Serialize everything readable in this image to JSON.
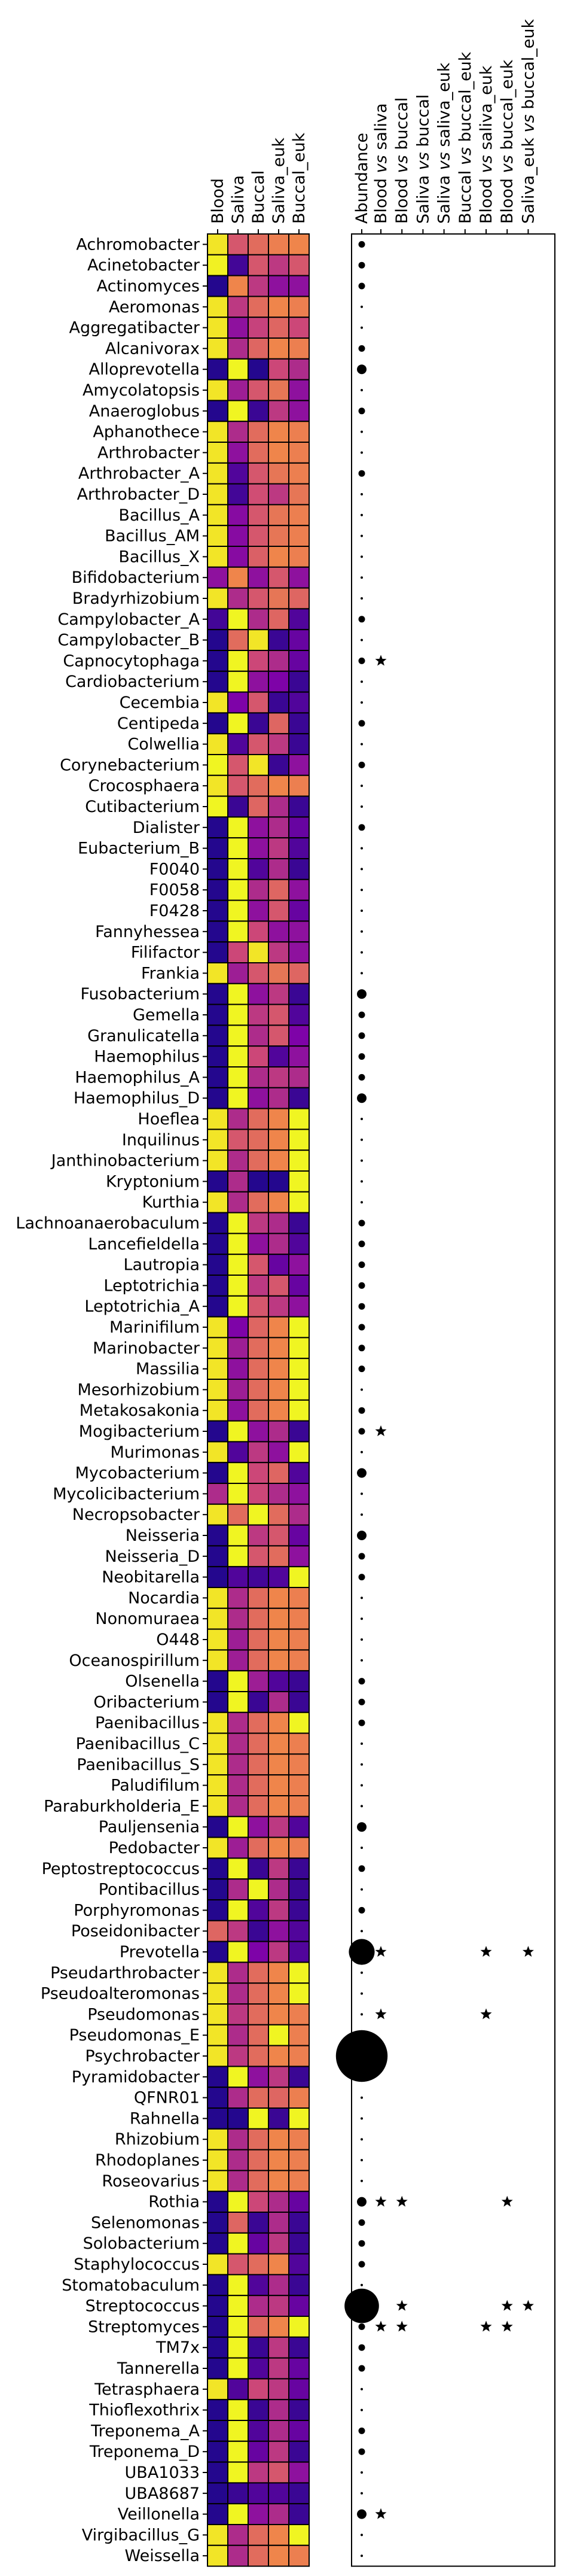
{
  "chart_data": {
    "type": "heatmap",
    "title": "",
    "xlabel": "",
    "ylabel": "",
    "heatmap_columns": [
      "Blood",
      "Saliva",
      "Buccal",
      "Saliva_euk",
      "Buccal_euk"
    ],
    "abundance_column": "Abundance",
    "comparison_columns": [
      {
        "a": "Blood",
        "vs": "vs",
        "b": "saliva"
      },
      {
        "a": "Blood",
        "vs": "vs",
        "b": "buccal"
      },
      {
        "a": "Saliva",
        "vs": "vs",
        "b": "buccal"
      },
      {
        "a": "Saliva",
        "vs": "vs",
        "b": "saliva_euk"
      },
      {
        "a": "Buccal",
        "vs": "vs",
        "b": "buccal_euk"
      },
      {
        "a": "Blood",
        "vs": "vs",
        "b": "saliva_euk"
      },
      {
        "a": "Blood",
        "vs": "vs",
        "b": "buccal_euk"
      },
      {
        "a": "Saliva_euk",
        "vs": "vs",
        "b": "buccal_euk"
      }
    ],
    "colormap": "plasma",
    "value_range": [
      0,
      1
    ],
    "genera": [
      "Achromobacter",
      "Acinetobacter",
      "Actinomyces",
      "Aeromonas",
      "Aggregatibacter",
      "Alcanivorax",
      "Alloprevotella",
      "Amycolatopsis",
      "Anaeroglobus",
      "Aphanothece",
      "Arthrobacter",
      "Arthrobacter_A",
      "Arthrobacter_D",
      "Bacillus_A",
      "Bacillus_AM",
      "Bacillus_X",
      "Bifidobacterium",
      "Bradyrhizobium",
      "Campylobacter_A",
      "Campylobacter_B",
      "Capnocytophaga",
      "Cardiobacterium",
      "Cecembia",
      "Centipeda",
      "Colwellia",
      "Corynebacterium",
      "Crocosphaera",
      "Cutibacterium",
      "Dialister",
      "Eubacterium_B",
      "F0040",
      "F0058",
      "F0428",
      "Fannyhessea",
      "Filifactor",
      "Frankia",
      "Fusobacterium",
      "Gemella",
      "Granulicatella",
      "Haemophilus",
      "Haemophilus_A",
      "Haemophilus_D",
      "Hoeflea",
      "Inquilinus",
      "Janthinobacterium",
      "Kryptonium",
      "Kurthia",
      "Lachnoanaerobaculum",
      "Lancefieldella",
      "Lautropia",
      "Leptotrichia",
      "Leptotrichia_A",
      "Marinifilum",
      "Marinobacter",
      "Massilia",
      "Mesorhizobium",
      "Metakosakonia",
      "Mogibacterium",
      "Murimonas",
      "Mycobacterium",
      "Mycolicibacterium",
      "Necropsobacter",
      "Neisseria",
      "Neisseria_D",
      "Neobitarella",
      "Nocardia",
      "Nonomuraea",
      "O448",
      "Oceanospirillum",
      "Olsenella",
      "Oribacterium",
      "Paenibacillus",
      "Paenibacillus_C",
      "Paenibacillus_S",
      "Paludifilum",
      "Paraburkholderia_E",
      "Pauljensenia",
      "Pedobacter",
      "Peptostreptococcus",
      "Pontibacillus",
      "Porphyromonas",
      "Poseidonibacter",
      "Prevotella",
      "Pseudarthrobacter",
      "Pseudoalteromonas",
      "Pseudomonas",
      "Pseudomonas_E",
      "Psychrobacter",
      "Pyramidobacter",
      "QFNR01",
      "Rahnella",
      "Rhizobium",
      "Rhodoplanes",
      "Roseovarius",
      "Rothia",
      "Selenomonas",
      "Solobacterium",
      "Staphylococcus",
      "Stomatobaculum",
      "Streptococcus",
      "Streptomyces",
      "TM7x",
      "Tannerella",
      "Tetrasphaera",
      "Thioflexothrix",
      "Treponema_A",
      "Treponema_D",
      "UBA1033",
      "UBA8687",
      "Veillonella",
      "Virgibacillus_G",
      "Weissella"
    ],
    "values": [
      [
        0.95,
        0.55,
        0.62,
        0.68,
        0.7
      ],
      [
        0.98,
        0.12,
        0.55,
        0.45,
        0.55
      ],
      [
        0.05,
        0.7,
        0.45,
        0.3,
        0.3
      ],
      [
        0.95,
        0.45,
        0.62,
        0.7,
        0.68
      ],
      [
        0.95,
        0.3,
        0.48,
        0.6,
        0.5
      ],
      [
        0.95,
        0.4,
        0.6,
        0.7,
        0.68
      ],
      [
        0.05,
        0.99,
        0.05,
        0.5,
        0.4
      ],
      [
        0.95,
        0.35,
        0.55,
        0.65,
        0.3
      ],
      [
        0.05,
        0.99,
        0.1,
        0.45,
        0.3
      ],
      [
        0.95,
        0.4,
        0.62,
        0.7,
        0.68
      ],
      [
        0.95,
        0.3,
        0.62,
        0.7,
        0.68
      ],
      [
        0.95,
        0.15,
        0.55,
        0.65,
        0.68
      ],
      [
        0.95,
        0.12,
        0.52,
        0.45,
        0.65
      ],
      [
        0.95,
        0.28,
        0.55,
        0.65,
        0.68
      ],
      [
        0.95,
        0.28,
        0.55,
        0.65,
        0.68
      ],
      [
        0.95,
        0.28,
        0.58,
        0.7,
        0.68
      ],
      [
        0.3,
        0.7,
        0.3,
        0.55,
        0.3
      ],
      [
        0.95,
        0.4,
        0.55,
        0.65,
        0.6
      ],
      [
        0.12,
        0.99,
        0.4,
        0.6,
        0.15
      ],
      [
        0.05,
        0.62,
        0.95,
        0.1,
        0.2
      ],
      [
        0.05,
        0.99,
        0.5,
        0.4,
        0.2
      ],
      [
        0.05,
        0.99,
        0.3,
        0.25,
        0.1
      ],
      [
        0.95,
        0.25,
        0.55,
        0.1,
        0.15
      ],
      [
        0.05,
        0.99,
        0.1,
        0.6,
        0.1
      ],
      [
        0.95,
        0.15,
        0.55,
        0.45,
        0.1
      ],
      [
        0.99,
        0.55,
        0.95,
        0.1,
        0.3
      ],
      [
        0.95,
        0.55,
        0.62,
        0.7,
        0.68
      ],
      [
        0.99,
        0.1,
        0.6,
        0.4,
        0.1
      ],
      [
        0.05,
        0.99,
        0.3,
        0.4,
        0.2
      ],
      [
        0.05,
        0.99,
        0.3,
        0.45,
        0.15
      ],
      [
        0.05,
        0.99,
        0.15,
        0.4,
        0.1
      ],
      [
        0.05,
        0.99,
        0.4,
        0.6,
        0.3
      ],
      [
        0.05,
        0.99,
        0.3,
        0.55,
        0.2
      ],
      [
        0.05,
        0.99,
        0.5,
        0.3,
        0.3
      ],
      [
        0.05,
        0.5,
        0.95,
        0.45,
        0.3
      ],
      [
        0.95,
        0.35,
        0.55,
        0.65,
        0.6
      ],
      [
        0.05,
        0.99,
        0.3,
        0.45,
        0.1
      ],
      [
        0.05,
        0.99,
        0.45,
        0.55,
        0.15
      ],
      [
        0.05,
        0.99,
        0.4,
        0.55,
        0.25
      ],
      [
        0.05,
        0.99,
        0.5,
        0.15,
        0.3
      ],
      [
        0.05,
        0.99,
        0.4,
        0.45,
        0.4
      ],
      [
        0.05,
        0.99,
        0.3,
        0.4,
        0.1
      ],
      [
        0.95,
        0.4,
        0.62,
        0.7,
        0.99
      ],
      [
        0.95,
        0.55,
        0.62,
        0.7,
        0.99
      ],
      [
        0.95,
        0.4,
        0.62,
        0.7,
        0.99
      ],
      [
        0.05,
        0.4,
        0.05,
        0.05,
        0.99
      ],
      [
        0.95,
        0.4,
        0.62,
        0.7,
        0.99
      ],
      [
        0.05,
        0.99,
        0.45,
        0.4,
        0.1
      ],
      [
        0.05,
        0.99,
        0.3,
        0.4,
        0.15
      ],
      [
        0.05,
        0.99,
        0.55,
        0.2,
        0.3
      ],
      [
        0.05,
        0.99,
        0.45,
        0.55,
        0.2
      ],
      [
        0.05,
        0.99,
        0.55,
        0.45,
        0.3
      ],
      [
        0.95,
        0.25,
        0.6,
        0.7,
        0.99
      ],
      [
        0.95,
        0.35,
        0.62,
        0.7,
        0.99
      ],
      [
        0.95,
        0.3,
        0.62,
        0.7,
        0.99
      ],
      [
        0.95,
        0.35,
        0.62,
        0.7,
        0.99
      ],
      [
        0.95,
        0.3,
        0.62,
        0.7,
        0.99
      ],
      [
        0.05,
        0.99,
        0.3,
        0.4,
        0.1
      ],
      [
        0.95,
        0.15,
        0.45,
        0.3,
        0.99
      ],
      [
        0.05,
        0.99,
        0.5,
        0.6,
        0.15
      ],
      [
        0.4,
        0.99,
        0.5,
        0.4,
        0.3
      ],
      [
        0.95,
        0.62,
        0.99,
        0.62,
        0.4
      ],
      [
        0.05,
        0.99,
        0.45,
        0.55,
        0.2
      ],
      [
        0.05,
        0.99,
        0.55,
        0.62,
        0.3
      ],
      [
        0.05,
        0.15,
        0.12,
        0.15,
        0.99
      ],
      [
        0.95,
        0.4,
        0.62,
        0.7,
        0.68
      ],
      [
        0.95,
        0.4,
        0.62,
        0.7,
        0.68
      ],
      [
        0.95,
        0.35,
        0.62,
        0.7,
        0.68
      ],
      [
        0.95,
        0.35,
        0.62,
        0.7,
        0.68
      ],
      [
        0.05,
        0.99,
        0.35,
        0.15,
        0.1
      ],
      [
        0.05,
        0.99,
        0.1,
        0.4,
        0.1
      ],
      [
        0.95,
        0.4,
        0.62,
        0.7,
        0.99
      ],
      [
        0.95,
        0.4,
        0.62,
        0.7,
        0.68
      ],
      [
        0.95,
        0.4,
        0.62,
        0.7,
        0.68
      ],
      [
        0.95,
        0.4,
        0.62,
        0.7,
        0.68
      ],
      [
        0.95,
        0.4,
        0.62,
        0.7,
        0.68
      ],
      [
        0.05,
        0.99,
        0.3,
        0.45,
        0.15
      ],
      [
        0.95,
        0.35,
        0.62,
        0.7,
        0.68
      ],
      [
        0.05,
        0.99,
        0.1,
        0.45,
        0.1
      ],
      [
        0.05,
        0.4,
        0.99,
        0.4,
        0.1
      ],
      [
        0.05,
        0.99,
        0.15,
        0.45,
        0.1
      ],
      [
        0.6,
        0.45,
        0.1,
        0.3,
        0.15
      ],
      [
        0.05,
        0.99,
        0.25,
        0.45,
        0.15
      ],
      [
        0.95,
        0.4,
        0.62,
        0.7,
        0.99
      ],
      [
        0.95,
        0.4,
        0.62,
        0.7,
        0.99
      ],
      [
        0.95,
        0.45,
        0.62,
        0.7,
        0.68
      ],
      [
        0.95,
        0.4,
        0.62,
        0.99,
        0.68
      ],
      [
        0.95,
        0.45,
        0.62,
        0.7,
        0.68
      ],
      [
        0.05,
        0.99,
        0.3,
        0.45,
        0.1
      ],
      [
        0.05,
        0.4,
        0.62,
        0.6,
        0.68
      ],
      [
        0.05,
        0.05,
        0.99,
        0.1,
        0.99
      ],
      [
        0.95,
        0.4,
        0.62,
        0.7,
        0.68
      ],
      [
        0.95,
        0.4,
        0.62,
        0.7,
        0.68
      ],
      [
        0.95,
        0.4,
        0.62,
        0.7,
        0.68
      ],
      [
        0.05,
        0.99,
        0.5,
        0.4,
        0.2
      ],
      [
        0.05,
        0.6,
        0.1,
        0.4,
        0.1
      ],
      [
        0.05,
        0.99,
        0.2,
        0.45,
        0.1
      ],
      [
        0.95,
        0.55,
        0.62,
        0.7,
        0.15
      ],
      [
        0.05,
        0.99,
        0.15,
        0.4,
        0.1
      ],
      [
        0.05,
        0.99,
        0.4,
        0.45,
        0.2
      ],
      [
        0.05,
        0.99,
        0.62,
        0.7,
        0.99
      ],
      [
        0.05,
        0.99,
        0.1,
        0.45,
        0.1
      ],
      [
        0.05,
        0.99,
        0.15,
        0.45,
        0.2
      ],
      [
        0.95,
        0.15,
        0.5,
        0.45,
        0.2
      ],
      [
        0.05,
        0.99,
        0.1,
        0.4,
        0.1
      ],
      [
        0.05,
        0.99,
        0.15,
        0.4,
        0.2
      ],
      [
        0.05,
        0.99,
        0.2,
        0.45,
        0.1
      ],
      [
        0.05,
        0.99,
        0.45,
        0.55,
        0.3
      ],
      [
        0.05,
        0.1,
        0.15,
        0.15,
        0.1
      ],
      [
        0.05,
        0.99,
        0.3,
        0.4,
        0.1
      ],
      [
        0.95,
        0.4,
        0.62,
        0.7,
        0.99
      ],
      [
        0.95,
        0.4,
        0.62,
        0.7,
        0.68
      ]
    ],
    "abundance_dot_size": [
      1,
      1,
      1,
      0.5,
      0.5,
      1,
      2,
      0.5,
      1,
      0.5,
      0.5,
      1,
      0.5,
      0.5,
      0.5,
      0.5,
      0.5,
      0.5,
      1,
      0.5,
      1,
      0.5,
      0.5,
      1,
      0.5,
      1,
      0.5,
      0.5,
      1,
      0.5,
      0.5,
      0.5,
      0.5,
      0.5,
      0.5,
      0.5,
      2,
      1,
      1,
      1,
      1,
      2,
      0.5,
      0.5,
      0.5,
      0.5,
      0.5,
      1,
      1,
      1,
      1,
      1,
      1,
      1,
      1,
      0.5,
      1,
      1,
      0.5,
      2,
      0.5,
      0.5,
      2,
      1,
      1,
      0.5,
      0.5,
      0.5,
      0.5,
      1,
      1,
      1,
      0.5,
      0.5,
      0.5,
      0.5,
      1.5,
      0.5,
      1,
      0.5,
      1,
      0.5,
      6,
      0.5,
      0.5,
      0.5,
      1,
      12,
      0.5,
      0.5,
      0.5,
      0.5,
      0.5,
      0.5,
      2,
      1,
      1,
      1,
      0.5,
      8,
      1,
      1,
      1,
      0.5,
      0.5,
      1,
      1,
      0.5,
      0.5,
      2,
      0.5,
      0.5
    ],
    "significance_stars": [
      {
        "genus": "Capnocytophaga",
        "columns": [
          0
        ]
      },
      {
        "genus": "Mogibacterium",
        "columns": [
          0
        ]
      },
      {
        "genus": "Prevotella",
        "columns": [
          0,
          5,
          7
        ]
      },
      {
        "genus": "Pseudomonas",
        "columns": [
          0,
          5
        ]
      },
      {
        "genus": "Rothia",
        "columns": [
          0,
          1,
          6
        ]
      },
      {
        "genus": "Streptococcus",
        "columns": [
          1,
          6,
          7
        ]
      },
      {
        "genus": "Streptomyces",
        "columns": [
          0,
          1,
          5,
          6
        ]
      },
      {
        "genus": "Veillonella",
        "columns": [
          0
        ]
      }
    ]
  }
}
